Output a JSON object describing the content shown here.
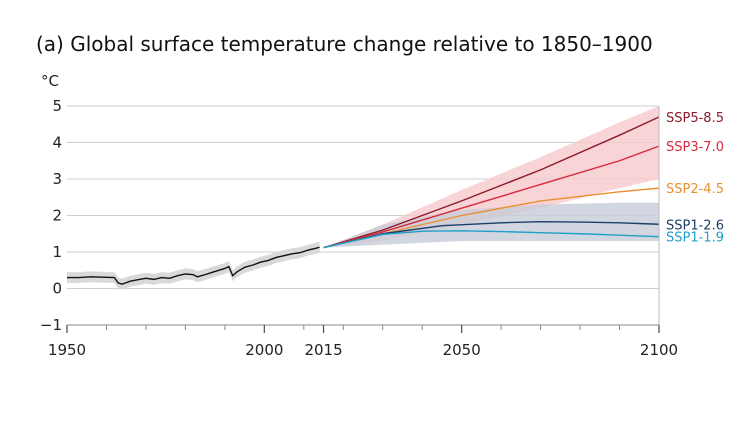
{
  "chart_data": {
    "type": "line",
    "title": "(a) Global surface temperature change relative to 1850–1900",
    "ylabel": "°C",
    "xlabel": "",
    "xlim": [
      1950,
      2100
    ],
    "ylim": [
      -1,
      5
    ],
    "x_ticks": [
      1950,
      2000,
      2015,
      2050,
      2100
    ],
    "x_minor_ticks": [
      1960,
      1970,
      1980,
      1990,
      2010,
      2020,
      2030,
      2040,
      2060,
      2070,
      2080,
      2090
    ],
    "y_ticks": [
      -1,
      0,
      1,
      2,
      3,
      4,
      5
    ],
    "y_tick_labels": [
      "−1",
      "0",
      "1",
      "2",
      "3",
      "4",
      "5"
    ],
    "grid": "horizontal",
    "historical": {
      "color": "#111111",
      "band_color": "#d9d9d9",
      "x": [
        1950,
        1953,
        1956,
        1959,
        1962,
        1963,
        1964,
        1966,
        1968,
        1970,
        1972,
        1974,
        1976,
        1978,
        1980,
        1982,
        1983,
        1985,
        1987,
        1990,
        1991,
        1992,
        1993,
        1995,
        1997,
        1999,
        2001,
        2003,
        2005,
        2007,
        2009,
        2011,
        2013,
        2014
      ],
      "y": [
        0.3,
        0.3,
        0.32,
        0.31,
        0.3,
        0.15,
        0.12,
        0.2,
        0.24,
        0.28,
        0.25,
        0.3,
        0.28,
        0.35,
        0.4,
        0.38,
        0.32,
        0.38,
        0.45,
        0.55,
        0.6,
        0.35,
        0.45,
        0.58,
        0.64,
        0.72,
        0.77,
        0.85,
        0.9,
        0.95,
        0.98,
        1.05,
        1.1,
        1.13
      ],
      "band_half_width": 0.15
    },
    "series": [
      {
        "name": "SSP5-8.5",
        "color": "#8b1a2b",
        "x": [
          2015,
          2030,
          2050,
          2070,
          2090,
          2100
        ],
        "y": [
          1.12,
          1.6,
          2.4,
          3.25,
          4.2,
          4.7
        ]
      },
      {
        "name": "SSP3-7.0",
        "color": "#d62b3d",
        "x": [
          2015,
          2030,
          2050,
          2070,
          2090,
          2100
        ],
        "y": [
          1.12,
          1.55,
          2.2,
          2.85,
          3.5,
          3.9
        ]
      },
      {
        "name": "SSP2-4.5",
        "color": "#e8902e",
        "x": [
          2015,
          2030,
          2050,
          2070,
          2090,
          2100
        ],
        "y": [
          1.12,
          1.5,
          2.0,
          2.4,
          2.65,
          2.75
        ]
      },
      {
        "name": "SSP1-2.6",
        "color": "#1d3d6b",
        "x": [
          2015,
          2030,
          2045,
          2060,
          2070,
          2080,
          2090,
          2100
        ],
        "y": [
          1.12,
          1.5,
          1.72,
          1.8,
          1.83,
          1.82,
          1.8,
          1.76
        ]
      },
      {
        "name": "SSP1-1.9",
        "color": "#1fa0c8",
        "x": [
          2015,
          2030,
          2040,
          2050,
          2060,
          2070,
          2080,
          2090,
          2100
        ],
        "y": [
          1.12,
          1.48,
          1.57,
          1.58,
          1.56,
          1.53,
          1.5,
          1.46,
          1.42
        ]
      }
    ],
    "bands": [
      {
        "name": "SSP3-7.0 range",
        "color": "#f6c9cc",
        "x": [
          2015,
          2030,
          2050,
          2070,
          2090,
          2100
        ],
        "lower": [
          1.12,
          1.3,
          1.75,
          2.2,
          2.75,
          3.0
        ],
        "upper": [
          1.12,
          1.75,
          2.7,
          3.6,
          4.55,
          5.0
        ]
      },
      {
        "name": "SSP1-2.6 range",
        "color": "#c7ccd8",
        "x": [
          2015,
          2030,
          2050,
          2070,
          2090,
          2100
        ],
        "lower": [
          1.12,
          1.2,
          1.3,
          1.3,
          1.3,
          1.3
        ],
        "upper": [
          1.12,
          1.75,
          2.15,
          2.3,
          2.35,
          2.35
        ]
      }
    ]
  }
}
